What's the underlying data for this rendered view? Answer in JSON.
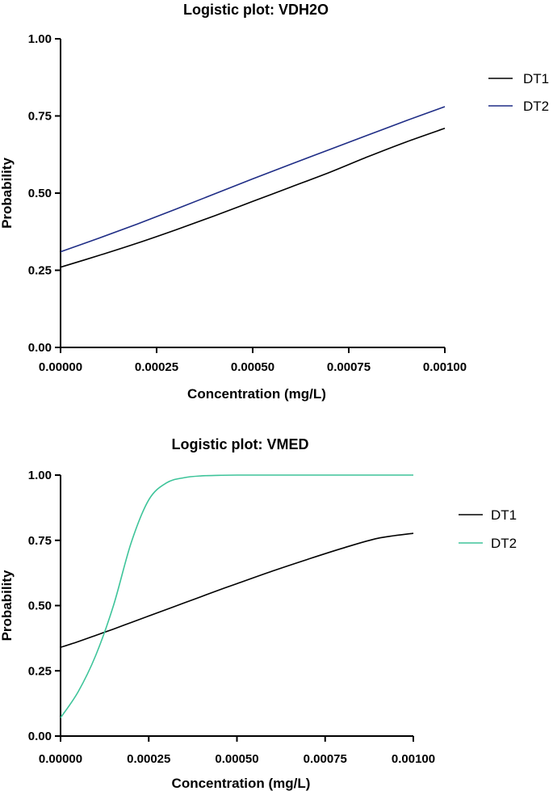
{
  "chart_data": [
    {
      "type": "line",
      "title": "Logistic plot: VDH2O",
      "xlabel": "Concentration (mg/L)",
      "ylabel": "Probability",
      "xlim": [
        0,
        0.001
      ],
      "ylim": [
        0,
        1
      ],
      "x_ticks": [
        "0.00000",
        "0.00025",
        "0.00050",
        "0.00075",
        "0.00100"
      ],
      "y_ticks": [
        "0.00",
        "0.25",
        "0.50",
        "0.75",
        "1.00"
      ],
      "grid": false,
      "legend_position": "right",
      "x": [
        0,
        0.0001,
        0.0002,
        0.0003,
        0.0004,
        0.0005,
        0.0006,
        0.0007,
        0.0008,
        0.0009,
        0.001
      ],
      "series": [
        {
          "name": "DT1",
          "color": "#000000",
          "values": [
            0.26,
            0.298,
            0.338,
            0.381,
            0.426,
            0.473,
            0.52,
            0.567,
            0.618,
            0.666,
            0.71
          ]
        },
        {
          "name": "DT2",
          "color": "#1f2d86",
          "values": [
            0.31,
            0.354,
            0.4,
            0.448,
            0.497,
            0.546,
            0.594,
            0.641,
            0.688,
            0.735,
            0.78
          ]
        }
      ]
    },
    {
      "type": "line",
      "title": "Logistic plot: VMED",
      "xlabel": "Concentration (mg/L)",
      "ylabel": "Probability",
      "xlim": [
        0,
        0.001
      ],
      "ylim": [
        0,
        1
      ],
      "x_ticks": [
        "0.00000",
        "0.00025",
        "0.00050",
        "0.00075",
        "0.00100"
      ],
      "y_ticks": [
        "0.00",
        "0.25",
        "0.50",
        "0.75",
        "1.00"
      ],
      "grid": false,
      "legend_position": "right",
      "x": [
        0,
        5e-05,
        0.0001,
        0.00015,
        0.0002,
        0.00025,
        0.0003,
        0.00035,
        0.0004,
        0.00045,
        0.0005,
        0.0006,
        0.0007,
        0.0008,
        0.0009,
        0.001
      ],
      "series": [
        {
          "name": "DT1",
          "color": "#000000",
          "values": [
            0.34,
            0.362,
            0.386,
            0.41,
            0.435,
            0.46,
            0.485,
            0.51,
            0.535,
            0.56,
            0.584,
            0.632,
            0.677,
            0.72,
            0.758,
            0.777
          ]
        },
        {
          "name": "DT2",
          "color": "#3ec49a",
          "values": [
            0.07,
            0.17,
            0.31,
            0.5,
            0.74,
            0.905,
            0.97,
            0.99,
            0.997,
            0.999,
            1.0,
            1.0,
            1.0,
            1.0,
            1.0,
            1.0
          ]
        }
      ]
    }
  ]
}
